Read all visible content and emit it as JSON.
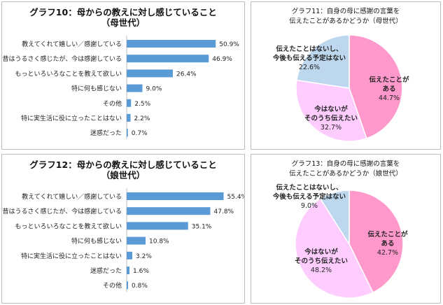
{
  "charts": [
    {
      "type": "bar",
      "title_line1": "グラフ10：母からの教えに対し感じていること",
      "title_line2": "（母世代）",
      "categories": [
        "教えてくれて嬉しい／感謝している",
        "昔はうるさく感じたが、今は感謝している",
        "もっといろいろなことを教えて欲しい",
        "特に何も感じない",
        "その他",
        "特に実生活に役に立ったことはない",
        "迷惑だった"
      ],
      "values": [
        50.9,
        46.9,
        26.4,
        9.0,
        2.5,
        2.2,
        0.7
      ],
      "value_labels": [
        "50.9%",
        "46.9%",
        "26.4%",
        "9.0%",
        "2.5%",
        "2.2%",
        "0.7%"
      ],
      "xlim": [
        0,
        60
      ],
      "bar_color": "#5b9bd5"
    },
    {
      "type": "pie",
      "title_line1": "グラフ11：自身の母に感謝の言葉を",
      "title_line2": "伝えたことがあるかどうか（母世代）",
      "slices": [
        {
          "label_lines": [
            "伝えたことが",
            "ある"
          ],
          "value": 44.7,
          "value_label": "44.7%",
          "color": "#ff99cc"
        },
        {
          "label_lines": [
            "今はないが",
            "そのうち伝えたい"
          ],
          "value": 32.7,
          "value_label": "32.7%",
          "color": "#ffccff"
        },
        {
          "label_lines": [
            "伝えたことはないし、",
            "今後も伝える予定はない"
          ],
          "value": 22.6,
          "value_label": "22.6%",
          "color": "#bdd7ee"
        }
      ]
    },
    {
      "type": "bar",
      "title_line1": "グラフ12：母からの教えに対し感じていること",
      "title_line2": "（娘世代）",
      "categories": [
        "教えてくれて嬉しい／感謝している",
        "昔はうるさく感じたが、今は感謝している",
        "もっといろいろなことを教えて欲しい",
        "特に何も感じない",
        "特に実生活に役に立ったことはない",
        "迷惑だった",
        "その他"
      ],
      "values": [
        55.4,
        47.8,
        35.1,
        10.8,
        3.2,
        1.6,
        0.8
      ],
      "value_labels": [
        "55.4%",
        "47.8%",
        "35.1%",
        "10.8%",
        "3.2%",
        "1.6%",
        "0.8%"
      ],
      "xlim": [
        0,
        60
      ],
      "bar_color": "#5b9bd5"
    },
    {
      "type": "pie",
      "title_line1": "グラフ13：自身の母に感謝の言葉を",
      "title_line2": "伝えたことがあるかどうか（娘世代）",
      "slices": [
        {
          "label_lines": [
            "伝えたことが",
            "ある"
          ],
          "value": 42.7,
          "value_label": "42.7%",
          "color": "#ff99cc"
        },
        {
          "label_lines": [
            "今はないが",
            "そのうち伝えたい"
          ],
          "value": 48.2,
          "value_label": "48.2%",
          "color": "#ffccff"
        },
        {
          "label_lines": [
            "伝えたことはないし、",
            "今後も伝える予定はない"
          ],
          "value": 9.0,
          "value_label": "9.0%",
          "color": "#bdd7ee"
        }
      ]
    }
  ]
}
